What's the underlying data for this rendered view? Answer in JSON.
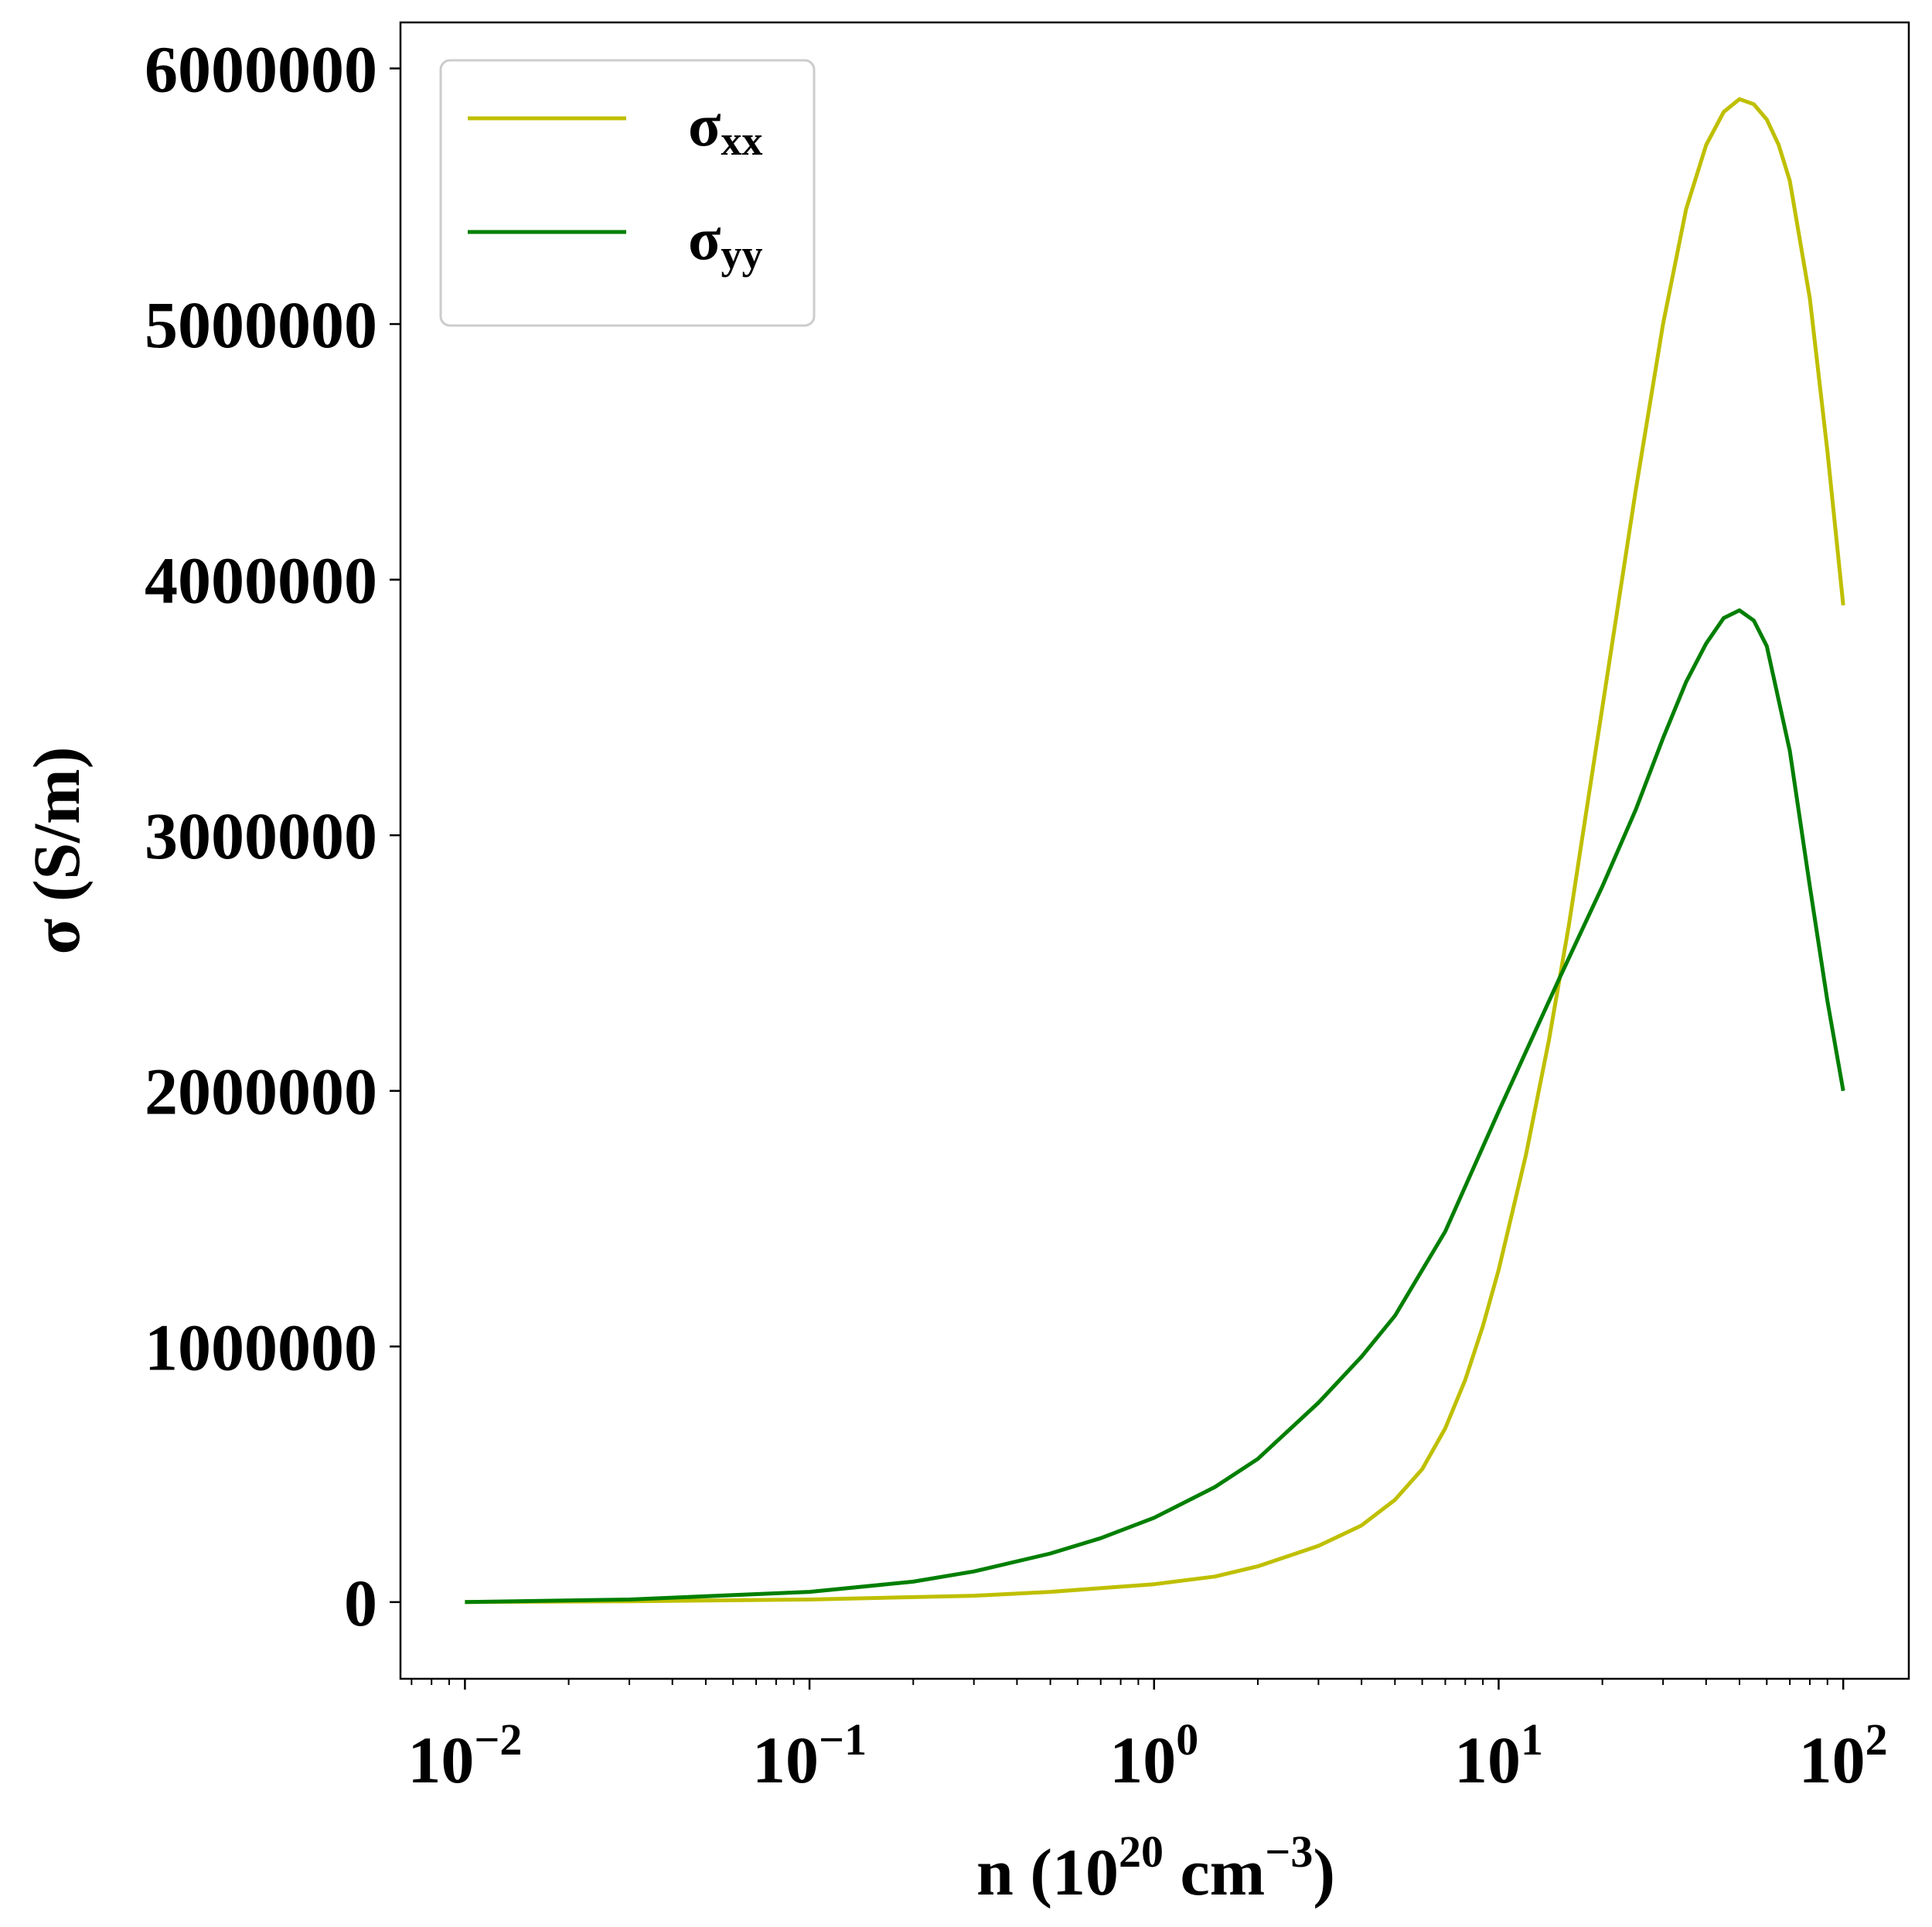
{
  "chart_data": {
    "type": "line",
    "xlabel": {
      "base": "n (10",
      "exp1": "20",
      "mid": " cm",
      "exp2": "−3",
      "end": ")"
    },
    "ylabel": "σ (S/m)",
    "x_scale": "log",
    "xlim": [
      0.0065,
      155
    ],
    "ylim": [
      -300000,
      6180000
    ],
    "x_ticks": [
      0.01,
      0.1,
      1,
      10,
      100
    ],
    "x_tick_labels": [
      {
        "base": "10",
        "exp": "−2"
      },
      {
        "base": "10",
        "exp": "−1"
      },
      {
        "base": "10",
        "exp": "0"
      },
      {
        "base": "10",
        "exp": "1"
      },
      {
        "base": "10",
        "exp": "2"
      }
    ],
    "y_ticks": [
      0,
      1000000,
      2000000,
      3000000,
      4000000,
      5000000,
      6000000
    ],
    "y_tick_labels": [
      "0",
      "1000000",
      "2000000",
      "3000000",
      "4000000",
      "5000000",
      "6000000"
    ],
    "grid": false,
    "legend_position": "top-left",
    "series": [
      {
        "name": {
          "base": "σ",
          "sub": "xx"
        },
        "color": "#bfbf00",
        "points": [
          [
            0.01,
            0
          ],
          [
            0.03,
            3000
          ],
          [
            0.1,
            10000
          ],
          [
            0.3,
            25000
          ],
          [
            0.5,
            40000
          ],
          [
            1,
            70000
          ],
          [
            1.5,
            100000
          ],
          [
            2,
            140000
          ],
          [
            3,
            220000
          ],
          [
            4,
            300000
          ],
          [
            5,
            400000
          ],
          [
            6,
            520000
          ],
          [
            7,
            680000
          ],
          [
            8,
            870000
          ],
          [
            9,
            1080000
          ],
          [
            10,
            1300000
          ],
          [
            12,
            1750000
          ],
          [
            14,
            2200000
          ],
          [
            16,
            2650000
          ],
          [
            18,
            3100000
          ],
          [
            20,
            3500000
          ],
          [
            25,
            4350000
          ],
          [
            30,
            5000000
          ],
          [
            35,
            5450000
          ],
          [
            40,
            5700000
          ],
          [
            45,
            5830000
          ],
          [
            50,
            5880000
          ],
          [
            55,
            5860000
          ],
          [
            60,
            5800000
          ],
          [
            65,
            5700000
          ],
          [
            70,
            5560000
          ],
          [
            80,
            5100000
          ],
          [
            90,
            4500000
          ],
          [
            100,
            3900000
          ]
        ]
      },
      {
        "name": {
          "base": "σ",
          "sub": "yy"
        },
        "color": "#007f00",
        "points": [
          [
            0.01,
            0
          ],
          [
            0.03,
            10000
          ],
          [
            0.1,
            40000
          ],
          [
            0.2,
            80000
          ],
          [
            0.3,
            120000
          ],
          [
            0.5,
            190000
          ],
          [
            0.7,
            250000
          ],
          [
            1,
            330000
          ],
          [
            1.5,
            450000
          ],
          [
            2,
            560000
          ],
          [
            3,
            780000
          ],
          [
            4,
            960000
          ],
          [
            5,
            1120000
          ],
          [
            7,
            1450000
          ],
          [
            10,
            1920000
          ],
          [
            15,
            2440000
          ],
          [
            20,
            2800000
          ],
          [
            25,
            3100000
          ],
          [
            30,
            3380000
          ],
          [
            35,
            3600000
          ],
          [
            40,
            3750000
          ],
          [
            45,
            3850000
          ],
          [
            50,
            3880000
          ],
          [
            55,
            3840000
          ],
          [
            60,
            3740000
          ],
          [
            70,
            3330000
          ],
          [
            80,
            2800000
          ],
          [
            90,
            2350000
          ],
          [
            100,
            2000000
          ]
        ]
      }
    ]
  }
}
